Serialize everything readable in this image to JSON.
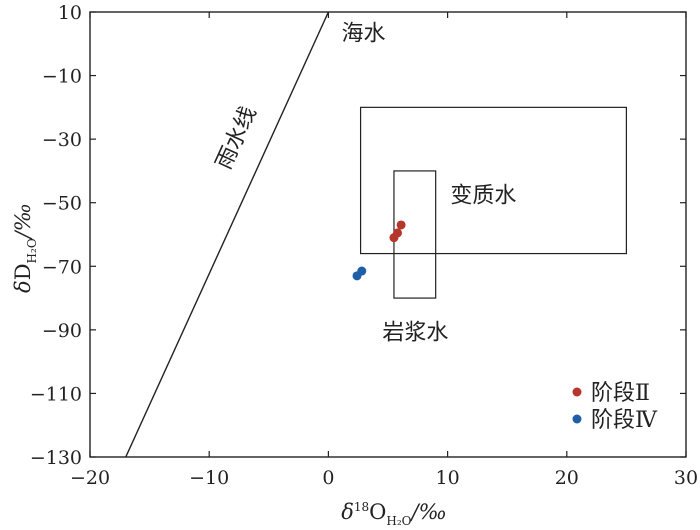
{
  "chart_data": {
    "type": "scatter",
    "xlim": [
      -20,
      30
    ],
    "ylim": [
      -130,
      10
    ],
    "x_ticks": [
      "−20",
      "−10",
      "0",
      "10",
      "20",
      "30"
    ],
    "y_ticks": [
      "10",
      "−10",
      "−30",
      "−50",
      "−70",
      "−90",
      "−110",
      "−130"
    ],
    "x_tick_values": [
      -20,
      -10,
      0,
      10,
      20,
      30
    ],
    "y_tick_values": [
      10,
      -10,
      -30,
      -50,
      -70,
      -90,
      -110,
      -130
    ],
    "xlabel": {
      "pre": "δ",
      "sup": "18",
      "main": "O",
      "sub": "H₂O",
      "post": "/‰"
    },
    "ylabel": {
      "pre": "δ",
      "main": "D",
      "sub": "H₂O",
      "post": "/‰"
    },
    "meteoric_line": {
      "label": "雨水线",
      "from": [
        -17,
        -130
      ],
      "to": [
        0,
        10
      ]
    },
    "seawater": {
      "label": "海水"
    },
    "metamorphic_box": {
      "label": "变质水",
      "x": [
        2.7,
        25
      ],
      "y": [
        -66,
        -20
      ]
    },
    "magmatic_box": {
      "label": "岩浆水",
      "x": [
        5.5,
        9
      ],
      "y": [
        -80,
        -40
      ]
    },
    "series": [
      {
        "name": "阶段Ⅱ",
        "color": "#b5372c",
        "points": [
          [
            5.5,
            -61
          ],
          [
            5.8,
            -59.5
          ],
          [
            6.1,
            -57
          ]
        ]
      },
      {
        "name": "阶段Ⅳ",
        "color": "#1f5fa8",
        "points": [
          [
            2.4,
            -73
          ],
          [
            2.8,
            -71.5
          ]
        ]
      }
    ],
    "legend_position": "bottom-right",
    "grid": false
  }
}
